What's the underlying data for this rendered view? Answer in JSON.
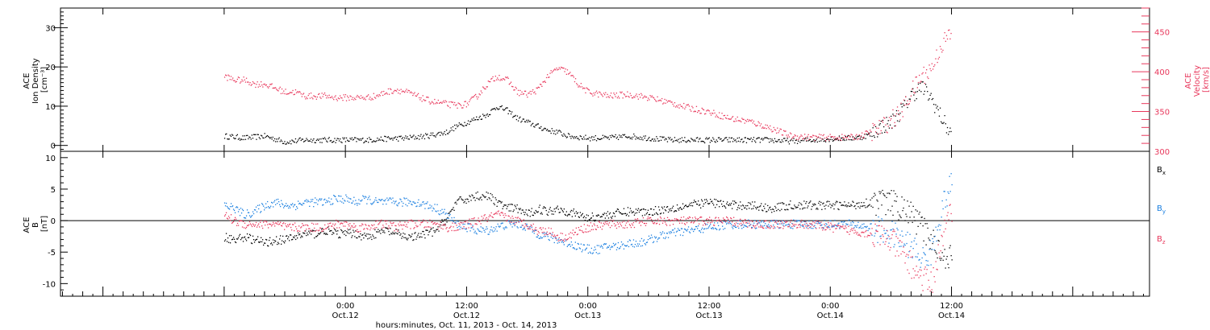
{
  "colors": {
    "density": "#000000",
    "velocity": "#e8385c",
    "bx": "#000000",
    "by": "#1a7fe0",
    "bz": "#e8385c",
    "axis": "#000000"
  },
  "chart_data": [
    {
      "type": "scatter",
      "panel": "top",
      "ylabel_lines": [
        "ACE",
        "Ion Density",
        "[cm⁻³]"
      ],
      "ylabel2_lines": [
        "ACE",
        "Velocity",
        "[km/s]"
      ],
      "ylim": [
        -1.5,
        35
      ],
      "y2lim": [
        300,
        480
      ],
      "yticks": [
        0,
        10,
        20,
        30
      ],
      "y2ticks": [
        300,
        350,
        400,
        450
      ],
      "series": [
        {
          "key": "density",
          "axis": "left",
          "x": [
            -12,
            -10,
            -8,
            -6,
            -4,
            -2,
            0,
            2,
            4,
            6,
            8,
            9,
            10,
            11,
            12,
            13,
            14,
            15,
            16,
            17,
            18,
            19,
            20,
            21,
            22,
            24,
            26,
            28,
            30,
            32,
            34,
            36,
            38,
            40,
            42,
            44,
            46,
            48,
            50,
            51,
            52,
            53,
            54,
            55,
            56,
            57,
            58,
            59,
            60
          ],
          "y": [
            2.5,
            2,
            2.5,
            1,
            1.5,
            1.5,
            1.5,
            1.5,
            1.8,
            2,
            2.5,
            3,
            3.5,
            5,
            6,
            7,
            8,
            10,
            9,
            7,
            6,
            5,
            4,
            3.5,
            2.5,
            2,
            2,
            2.5,
            2,
            1.5,
            1.5,
            1.5,
            1.5,
            1.5,
            1.5,
            1.2,
            1.5,
            1.8,
            2,
            2.2,
            3,
            5,
            6,
            9,
            13,
            15,
            12,
            7,
            2.5
          ]
        },
        {
          "key": "velocity",
          "axis": "right",
          "x": [
            -12,
            -11,
            -10,
            -9,
            -8,
            -7,
            -6,
            -5,
            -4,
            -3,
            -2,
            -1,
            0,
            1,
            2,
            3,
            4,
            5,
            6,
            7,
            8,
            9,
            10,
            11,
            12,
            13,
            14,
            15,
            16,
            17,
            18,
            19,
            20,
            21,
            22,
            23,
            24,
            26,
            28,
            30,
            32,
            34,
            36,
            38,
            40,
            42,
            44,
            46,
            48,
            50,
            51,
            52,
            53,
            54,
            55,
            56,
            57,
            58,
            59,
            60
          ],
          "y": [
            395,
            390,
            390,
            385,
            385,
            380,
            375,
            375,
            370,
            370,
            370,
            368,
            368,
            368,
            368,
            370,
            375,
            378,
            375,
            370,
            365,
            362,
            360,
            358,
            360,
            370,
            385,
            395,
            390,
            375,
            372,
            378,
            395,
            405,
            400,
            385,
            375,
            370,
            372,
            368,
            362,
            355,
            350,
            342,
            338,
            330,
            320,
            318,
            318,
            318,
            320,
            325,
            330,
            340,
            350,
            375,
            395,
            405,
            435,
            450
          ]
        }
      ]
    },
    {
      "type": "scatter",
      "panel": "bottom",
      "ylabel_lines": [
        "ACE",
        "B",
        "[nT]"
      ],
      "ylim": [
        -12,
        11
      ],
      "yticks": [
        -10,
        -5,
        0,
        5,
        10
      ],
      "zero_line": true,
      "legend_position": "right",
      "xlabel": "hours:minutes, Oct. 11, 2013 - Oct. 14, 2013",
      "xlim": [
        -28.2,
        79.6
      ],
      "xtick_labels": [
        {
          "x": 0,
          "time": "0:00",
          "date": "Oct.12"
        },
        {
          "x": 12,
          "time": "12:00",
          "date": "Oct.12"
        },
        {
          "x": 24,
          "time": "0:00",
          "date": "Oct.13"
        },
        {
          "x": 36,
          "time": "12:00",
          "date": "Oct.13"
        },
        {
          "x": 48,
          "time": "0:00",
          "date": "Oct.14"
        },
        {
          "x": 60,
          "time": "12:00",
          "date": "Oct.14"
        }
      ],
      "series": [
        {
          "key": "bx",
          "base": "B",
          "sub": "x",
          "x": [
            -12,
            -11,
            -10,
            -9,
            -8,
            -7,
            -6,
            -5,
            -4,
            -3,
            -2,
            -1,
            0,
            1,
            2,
            3,
            4,
            5,
            6,
            7,
            8,
            9,
            10,
            11,
            12,
            13,
            14,
            15,
            16,
            17,
            18,
            19,
            20,
            21,
            22,
            23,
            24,
            26,
            28,
            30,
            32,
            34,
            36,
            38,
            40,
            42,
            44,
            46,
            48,
            50,
            52,
            54,
            55,
            56,
            57,
            58,
            59,
            60
          ],
          "y": [
            -2.5,
            -3,
            -2.5,
            -3,
            -3.5,
            -3,
            -3,
            -2.5,
            -2,
            -2,
            -1.5,
            -2,
            -2,
            -2,
            -2.5,
            -2,
            -1.5,
            -2,
            -2.5,
            -2.5,
            -2,
            -1.5,
            0.5,
            3,
            3.5,
            4,
            4,
            3,
            2,
            2,
            1,
            2,
            1.5,
            2,
            1.5,
            1,
            0.5,
            1,
            1.5,
            1.5,
            2,
            2.5,
            3,
            2.5,
            2.5,
            2,
            2.5,
            2.5,
            2.5,
            2.5,
            3,
            3,
            2,
            1,
            -1,
            -3,
            -5,
            -6
          ]
        },
        {
          "key": "by",
          "base": "B",
          "sub": "y",
          "x": [
            -12,
            -11,
            -10,
            -9,
            -8,
            -7,
            -6,
            -5,
            -4,
            -3,
            -2,
            -1,
            0,
            1,
            2,
            3,
            4,
            5,
            6,
            7,
            8,
            9,
            10,
            11,
            12,
            13,
            14,
            15,
            16,
            17,
            18,
            19,
            20,
            21,
            22,
            23,
            24,
            25,
            26,
            27,
            28,
            29,
            30,
            32,
            34,
            36,
            38,
            40,
            42,
            44,
            46,
            48,
            50,
            52,
            54,
            55,
            56,
            57,
            58,
            59,
            60
          ],
          "y": [
            2.5,
            2,
            1,
            1.5,
            2.5,
            3,
            2.5,
            2.5,
            3,
            3,
            3,
            3.5,
            3.5,
            3,
            3.5,
            3,
            3,
            3,
            3,
            3,
            2.5,
            2,
            1,
            -0.5,
            -1,
            -1.5,
            -1.5,
            -1,
            -0.5,
            -0.5,
            -1,
            -2,
            -2.5,
            -3,
            -3.5,
            -4,
            -4.5,
            -4.5,
            -4,
            -4,
            -3.5,
            -3.5,
            -3,
            -2,
            -1.5,
            -1,
            -0.5,
            -0.5,
            -0.5,
            -0.5,
            -0.5,
            -0.5,
            -0.5,
            -1,
            -2,
            -3,
            -4,
            -6,
            -5,
            2,
            6
          ]
        },
        {
          "key": "bz",
          "base": "B",
          "sub": "z",
          "x": [
            -12,
            -11,
            -10,
            -9,
            -8,
            -7,
            -6,
            -5,
            -4,
            -3,
            -2,
            -1,
            0,
            1,
            2,
            3,
            4,
            5,
            6,
            7,
            8,
            9,
            10,
            11,
            12,
            13,
            14,
            15,
            16,
            17,
            18,
            19,
            20,
            21,
            22,
            23,
            24,
            26,
            28,
            30,
            32,
            34,
            36,
            38,
            40,
            42,
            44,
            46,
            48,
            50,
            52,
            54,
            55,
            56,
            57,
            58,
            59,
            60
          ],
          "y": [
            1,
            0,
            -0.5,
            -0.5,
            -0.5,
            -0.5,
            -1,
            -1,
            -1,
            -1,
            -1,
            -0.5,
            -0.5,
            -1,
            -1,
            -0.5,
            -0.5,
            -1,
            -0.5,
            -0.5,
            -0.5,
            -0.5,
            -1,
            -1,
            -0.5,
            0,
            0.5,
            1,
            0.5,
            0,
            -0.5,
            -1.5,
            -1.5,
            -2.5,
            -2.5,
            -1.5,
            -1,
            -0.5,
            -0.5,
            0,
            0,
            0,
            0,
            0,
            -0.5,
            -0.5,
            -0.5,
            -0.5,
            -1,
            -1.5,
            -2,
            -3,
            -5,
            -7,
            -9,
            -10,
            -3,
            2
          ]
        }
      ]
    }
  ]
}
